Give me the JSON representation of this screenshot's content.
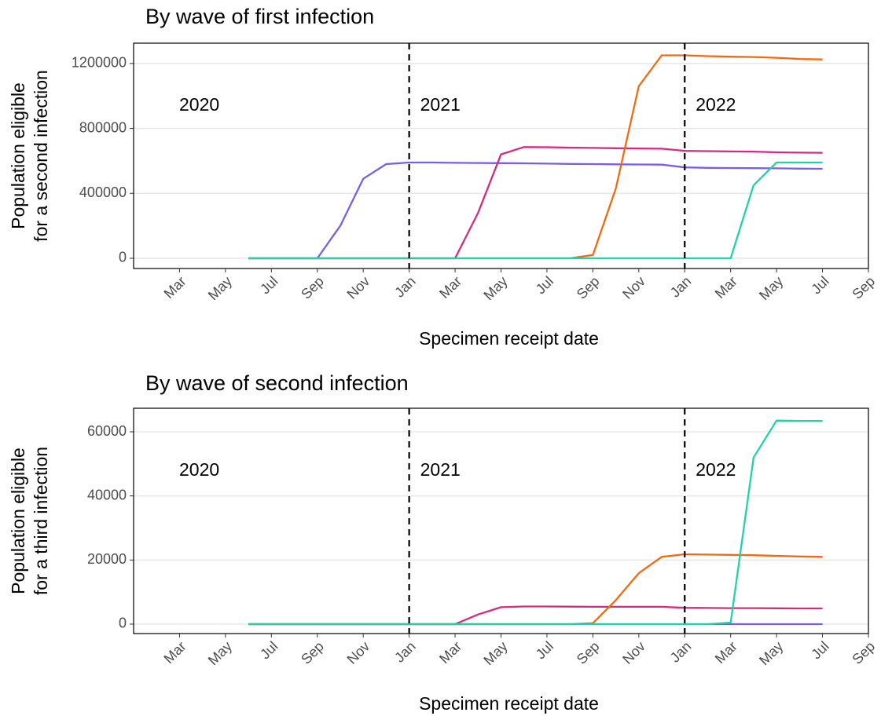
{
  "chart_data": [
    {
      "type": "line",
      "title": "By wave of first infection",
      "xlabel": "Specimen receipt date",
      "ylabel": [
        "Population eligible",
        "for a second infection"
      ],
      "x": [
        "2020-06",
        "2020-07",
        "2020-08",
        "2020-09",
        "2020-10",
        "2020-11",
        "2020-12",
        "2021-01",
        "2021-02",
        "2021-03",
        "2021-04",
        "2021-05",
        "2021-06",
        "2021-07",
        "2021-08",
        "2021-09",
        "2021-10",
        "2021-11",
        "2021-12",
        "2022-01",
        "2022-02",
        "2022-03",
        "2022-04",
        "2022-05",
        "2022-06",
        "2022-07"
      ],
      "xlim": [
        "2020-01",
        "2022-09"
      ],
      "xticks": [
        {
          "value": "2020-03",
          "label": "Mar"
        },
        {
          "value": "2020-05",
          "label": "May"
        },
        {
          "value": "2020-07",
          "label": "Jul"
        },
        {
          "value": "2020-09",
          "label": "Sep"
        },
        {
          "value": "2020-11",
          "label": "Nov"
        },
        {
          "value": "2021-01",
          "label": "Jan"
        },
        {
          "value": "2021-03",
          "label": "Mar"
        },
        {
          "value": "2021-05",
          "label": "May"
        },
        {
          "value": "2021-07",
          "label": "Jul"
        },
        {
          "value": "2021-09",
          "label": "Sep"
        },
        {
          "value": "2021-11",
          "label": "Nov"
        },
        {
          "value": "2022-01",
          "label": "Jan"
        },
        {
          "value": "2022-03",
          "label": "Mar"
        },
        {
          "value": "2022-05",
          "label": "May"
        },
        {
          "value": "2022-07",
          "label": "Jul"
        },
        {
          "value": "2022-09",
          "label": "Sep"
        }
      ],
      "ylim": [
        -63000,
        1325000
      ],
      "yticks": [
        0,
        400000,
        800000,
        1200000
      ],
      "grid": true,
      "vlines": [
        "2021-01",
        "2022-01"
      ],
      "annotations": [
        "2020",
        "2021",
        "2022"
      ],
      "series": [
        {
          "color": "#7b5ee6",
          "values": [
            0,
            0,
            0,
            0,
            200000,
            490000,
            580000,
            590000,
            590000,
            588000,
            587000,
            586000,
            585000,
            583000,
            581000,
            580000,
            579000,
            578000,
            577000,
            560000,
            557000,
            556000,
            555000,
            554000,
            552000,
            551000
          ]
        },
        {
          "color": "#d62a82",
          "values": [
            0,
            0,
            0,
            0,
            0,
            0,
            0,
            0,
            0,
            0,
            280000,
            640000,
            685000,
            684000,
            682000,
            680000,
            678000,
            676000,
            675000,
            662000,
            660000,
            658000,
            657000,
            653000,
            651000,
            650000
          ]
        },
        {
          "color": "#f26a10",
          "values": [
            0,
            0,
            0,
            0,
            0,
            0,
            0,
            0,
            0,
            0,
            0,
            0,
            0,
            0,
            0,
            20000,
            430000,
            1060000,
            1250000,
            1250000,
            1245000,
            1242000,
            1240000,
            1235000,
            1228000,
            1225000
          ]
        },
        {
          "color": "#1fd3a8",
          "values": [
            0,
            0,
            0,
            0,
            0,
            0,
            0,
            0,
            0,
            0,
            0,
            0,
            0,
            0,
            0,
            0,
            0,
            0,
            0,
            0,
            0,
            0,
            450000,
            590000,
            590000,
            590000
          ]
        }
      ]
    },
    {
      "type": "line",
      "title": "By wave of second infection",
      "xlabel": "Specimen receipt date",
      "ylabel": [
        "Population eligible",
        "for a third infection"
      ],
      "x": [
        "2020-06",
        "2020-07",
        "2020-08",
        "2020-09",
        "2020-10",
        "2020-11",
        "2020-12",
        "2021-01",
        "2021-02",
        "2021-03",
        "2021-04",
        "2021-05",
        "2021-06",
        "2021-07",
        "2021-08",
        "2021-09",
        "2021-10",
        "2021-11",
        "2021-12",
        "2022-01",
        "2022-02",
        "2022-03",
        "2022-04",
        "2022-05",
        "2022-06",
        "2022-07"
      ],
      "xlim": [
        "2020-01",
        "2022-09"
      ],
      "xticks": [
        {
          "value": "2020-03",
          "label": "Mar"
        },
        {
          "value": "2020-05",
          "label": "May"
        },
        {
          "value": "2020-07",
          "label": "Jul"
        },
        {
          "value": "2020-09",
          "label": "Sep"
        },
        {
          "value": "2020-11",
          "label": "Nov"
        },
        {
          "value": "2021-01",
          "label": "Jan"
        },
        {
          "value": "2021-03",
          "label": "Mar"
        },
        {
          "value": "2021-05",
          "label": "May"
        },
        {
          "value": "2021-07",
          "label": "Jul"
        },
        {
          "value": "2021-09",
          "label": "Sep"
        },
        {
          "value": "2021-11",
          "label": "Nov"
        },
        {
          "value": "2022-01",
          "label": "Jan"
        },
        {
          "value": "2022-03",
          "label": "Mar"
        },
        {
          "value": "2022-05",
          "label": "May"
        },
        {
          "value": "2022-07",
          "label": "Jul"
        },
        {
          "value": "2022-09",
          "label": "Sep"
        }
      ],
      "ylim": [
        -2940,
        67350
      ],
      "yticks": [
        0,
        20000,
        40000,
        60000
      ],
      "grid": true,
      "vlines": [
        "2021-01",
        "2022-01"
      ],
      "annotations": [
        "2020",
        "2021",
        "2022"
      ],
      "series": [
        {
          "color": "#7b5ee6",
          "values": [
            0,
            0,
            0,
            0,
            0,
            0,
            0,
            0,
            0,
            0,
            0,
            0,
            0,
            0,
            0,
            0,
            0,
            0,
            0,
            0,
            0,
            0,
            0,
            0,
            0,
            0
          ]
        },
        {
          "color": "#d62a82",
          "values": [
            0,
            0,
            0,
            0,
            0,
            0,
            0,
            0,
            0,
            0,
            3000,
            5300,
            5500,
            5500,
            5450,
            5400,
            5400,
            5400,
            5400,
            5100,
            5050,
            5000,
            5000,
            4950,
            4900,
            4900
          ]
        },
        {
          "color": "#f26a10",
          "values": [
            0,
            0,
            0,
            0,
            0,
            0,
            0,
            0,
            0,
            0,
            0,
            0,
            0,
            0,
            0,
            300,
            7500,
            15900,
            21000,
            21800,
            21700,
            21600,
            21500,
            21300,
            21100,
            21000
          ]
        },
        {
          "color": "#1fd3a8",
          "values": [
            0,
            0,
            0,
            0,
            0,
            0,
            0,
            0,
            0,
            0,
            0,
            0,
            0,
            0,
            0,
            0,
            0,
            0,
            0,
            0,
            0,
            500,
            52000,
            63500,
            63400,
            63400
          ]
        }
      ]
    }
  ]
}
